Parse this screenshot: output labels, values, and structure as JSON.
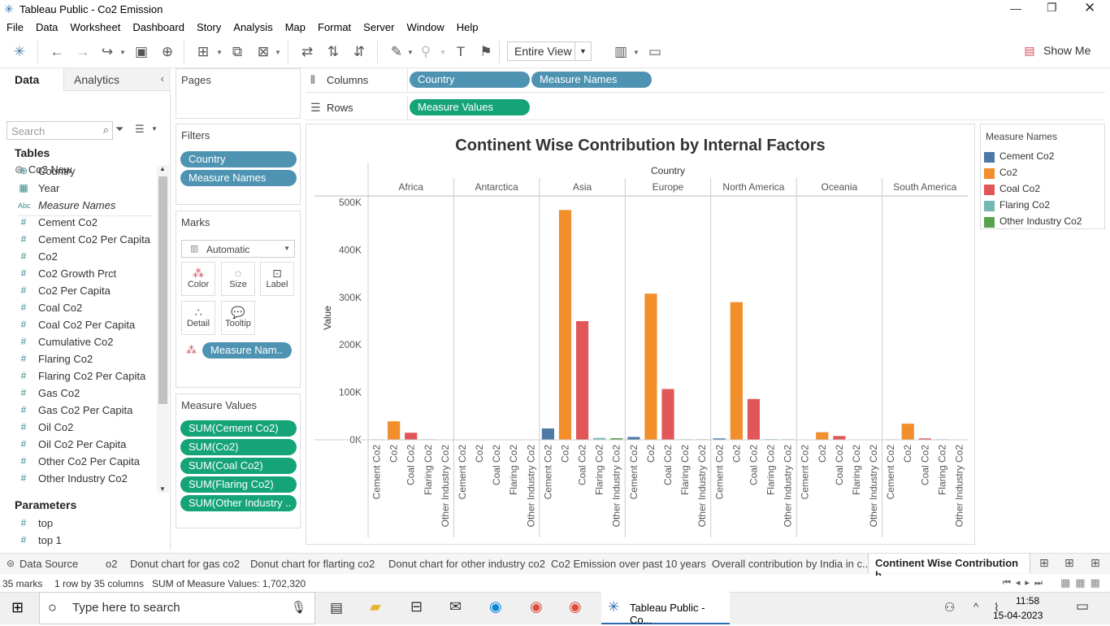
{
  "window": {
    "title": "Tableau Public - Co2 Emission"
  },
  "menu": [
    "File",
    "Data",
    "Worksheet",
    "Dashboard",
    "Story",
    "Analysis",
    "Map",
    "Format",
    "Server",
    "Window",
    "Help"
  ],
  "toolbar": {
    "fit": "Entire View",
    "show_me": "Show Me"
  },
  "left_pane": {
    "tabs": [
      "Data",
      "Analytics"
    ],
    "datasource": "Co2 New",
    "search_placeholder": "Search",
    "tables_header": "Tables",
    "fields": [
      {
        "type": "geo",
        "name": "Country"
      },
      {
        "type": "cal",
        "name": "Year"
      },
      {
        "type": "abc",
        "name": "Measure Names"
      },
      {
        "type": "num",
        "name": "Cement Co2"
      },
      {
        "type": "num",
        "name": "Cement Co2 Per Capita"
      },
      {
        "type": "num",
        "name": "Co2"
      },
      {
        "type": "num",
        "name": "Co2 Growth Prct"
      },
      {
        "type": "num",
        "name": "Co2 Per Capita"
      },
      {
        "type": "num",
        "name": "Coal Co2"
      },
      {
        "type": "num",
        "name": "Coal Co2 Per Capita"
      },
      {
        "type": "num",
        "name": "Cumulative Co2"
      },
      {
        "type": "num",
        "name": "Flaring Co2"
      },
      {
        "type": "num",
        "name": "Flaring Co2 Per Capita"
      },
      {
        "type": "num",
        "name": "Gas Co2"
      },
      {
        "type": "num",
        "name": "Gas Co2 Per Capita"
      },
      {
        "type": "num",
        "name": "Oil Co2"
      },
      {
        "type": "num",
        "name": "Oil Co2 Per Capita"
      },
      {
        "type": "num",
        "name": "Other Co2 Per Capita"
      },
      {
        "type": "num",
        "name": "Other Industry Co2"
      }
    ],
    "parameters_header": "Parameters",
    "parameters": [
      {
        "type": "num",
        "name": "top"
      },
      {
        "type": "num",
        "name": "top 1"
      }
    ]
  },
  "cards": {
    "pages": "Pages",
    "filters": {
      "title": "Filters",
      "pills": [
        "Country",
        "Measure Names"
      ]
    },
    "marks": {
      "title": "Marks",
      "type": "Automatic",
      "buttons": [
        "Color",
        "Size",
        "Label",
        "Detail",
        "Tooltip"
      ],
      "pill": "Measure Nam.."
    },
    "measure_values": {
      "title": "Measure Values",
      "pills": [
        "SUM(Cement Co2)",
        "SUM(Co2)",
        "SUM(Coal Co2)",
        "SUM(Flaring Co2)",
        "SUM(Other Industry .."
      ]
    }
  },
  "shelves": {
    "columns_label": "Columns",
    "columns": [
      "Country",
      "Measure Names"
    ],
    "rows_label": "Rows",
    "rows": [
      "Measure Values"
    ]
  },
  "legend": {
    "title": "Measure Names",
    "items": [
      {
        "name": "Cement Co2",
        "color": "#4e79a7"
      },
      {
        "name": "Co2",
        "color": "#f28e2b"
      },
      {
        "name": "Coal Co2",
        "color": "#e15759"
      },
      {
        "name": "Flaring Co2",
        "color": "#76b7b2"
      },
      {
        "name": "Other Industry Co2",
        "color": "#59a14f"
      }
    ]
  },
  "chart_data": {
    "type": "bar",
    "title": "Continent Wise Contribution by Internal Factors",
    "column_header": "Country",
    "ylabel": "Value",
    "ylim": [
      0,
      500000
    ],
    "yticks": [
      0,
      100000,
      200000,
      300000,
      400000,
      500000
    ],
    "ytick_labels": [
      "0K",
      "100K",
      "200K",
      "300K",
      "400K",
      "500K"
    ],
    "groups": [
      "Africa",
      "Antarctica",
      "Asia",
      "Europe",
      "North America",
      "Oceania",
      "South America"
    ],
    "categories": [
      "Cement Co2",
      "Co2",
      "Coal Co2",
      "Flaring Co2",
      "Other Industry Co2"
    ],
    "series": [
      {
        "name": "Africa",
        "values": [
          1000,
          39000,
          15000,
          1200,
          0
        ]
      },
      {
        "name": "Antarctica",
        "values": [
          0,
          0,
          0,
          0,
          0
        ]
      },
      {
        "name": "Asia",
        "values": [
          24000,
          484000,
          250000,
          4000,
          3500
        ]
      },
      {
        "name": "Europe",
        "values": [
          6000,
          308000,
          107000,
          1200,
          1200
        ]
      },
      {
        "name": "North America",
        "values": [
          3000,
          290000,
          86000,
          1500,
          1200
        ]
      },
      {
        "name": "Oceania",
        "values": [
          0,
          16000,
          8000,
          0,
          0
        ]
      },
      {
        "name": "South America",
        "values": [
          1000,
          34000,
          3000,
          1200,
          0
        ]
      }
    ]
  },
  "sheet_tabs": [
    "Data Source",
    "o2",
    "Donut chart for gas co2",
    "Donut chart for flarting co2",
    "Donut chart for other industry co2",
    "Co2 Emission over past 10 years",
    "Overall contribution by India in c...",
    "Continent Wise Contribution b..."
  ],
  "status": {
    "marks": "35 marks",
    "dims": "1 row by 35 columns",
    "sum": "SUM of Measure Values: 1,702,320"
  },
  "taskbar": {
    "search": "Type here to search",
    "app": "Tableau Public - Co...",
    "time": "11:58",
    "date": "15-04-2023"
  }
}
